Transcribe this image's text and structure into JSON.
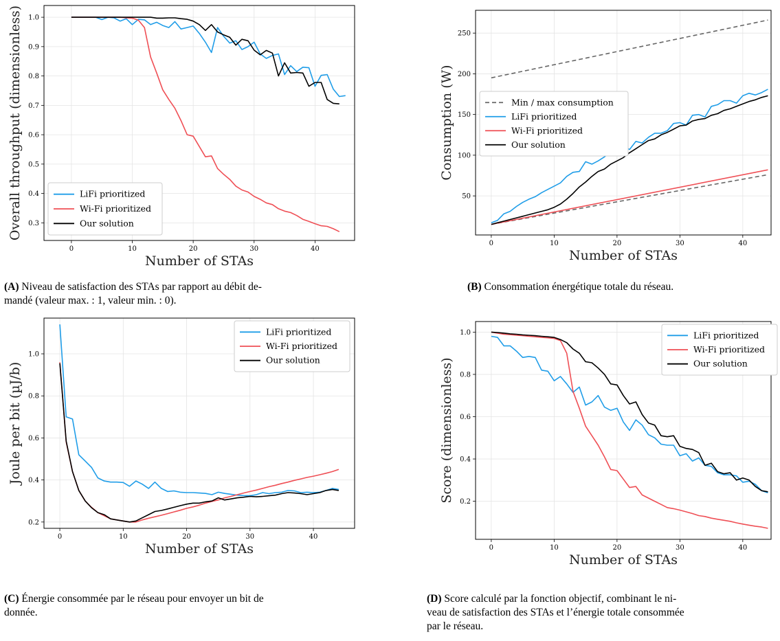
{
  "colors": {
    "lifi": "#1f9de8",
    "wifi": "#ef4f55",
    "ours": "#000000",
    "minmax": "#666666"
  },
  "captions": {
    "a": {
      "tag": "(A)",
      "text": " Niveau de satisfaction des STAs par rapport au débit de-\nmandé (valeur max. : 1, valeur min. : 0)."
    },
    "b": {
      "tag": "(B)",
      "text": " Consommation énergétique totale du réseau."
    },
    "c": {
      "tag": "(C)",
      "text": " Énergie consommée par le réseau pour envoyer un bit de\ndonnée."
    },
    "d": {
      "tag": "(D)",
      "text": " Score calculé par la fonction objectif, combinant le ni-\nveau de satisfaction des STAs et l’énergie totale consommée\npar le réseau."
    }
  },
  "chart_data": [
    {
      "id": "a",
      "type": "line",
      "xlabel": "Number of STAs",
      "ylabel": "Overall throughput (dimensionless)",
      "xlim": [
        -4.5,
        46.5
      ],
      "ylim": [
        0.24,
        1.04
      ],
      "xticks": [
        0,
        10,
        20,
        30,
        40
      ],
      "yticks": [
        0.3,
        0.4,
        0.5,
        0.6,
        0.7,
        0.8,
        0.9,
        1.0
      ],
      "ytick_labels": [
        "0.3",
        "0.4",
        "0.5",
        "0.6",
        "0.7",
        "0.8",
        "0.9",
        "1.0"
      ],
      "grid": true,
      "legend_position": "lower-left",
      "series": [
        {
          "name": "LiFi prioritized",
          "color_key": "lifi",
          "values": [
            1.0,
            1.0,
            1.0,
            1.0,
            1.0,
            0.992,
            1.0,
            0.998,
            0.987,
            0.995,
            0.975,
            0.993,
            0.991,
            0.975,
            0.983,
            0.972,
            0.965,
            0.985,
            0.96,
            0.965,
            0.97,
            0.945,
            0.915,
            0.88,
            0.965,
            0.935,
            0.912,
            0.92,
            0.89,
            0.9,
            0.915,
            0.875,
            0.86,
            0.87,
            0.875,
            0.805,
            0.835,
            0.815,
            0.83,
            0.828,
            0.765,
            0.802,
            0.805,
            0.755,
            0.73,
            0.733
          ]
        },
        {
          "name": "Wi-Fi prioritized",
          "color_key": "wifi",
          "values": [
            1.0,
            1.0,
            1.0,
            1.0,
            1.0,
            1.0,
            1.0,
            1.0,
            1.0,
            0.998,
            0.997,
            0.99,
            0.965,
            0.865,
            0.81,
            0.753,
            0.72,
            0.69,
            0.648,
            0.6,
            0.595,
            0.56,
            0.525,
            0.528,
            0.485,
            0.465,
            0.448,
            0.425,
            0.412,
            0.405,
            0.39,
            0.38,
            0.368,
            0.362,
            0.348,
            0.34,
            0.335,
            0.325,
            0.312,
            0.305,
            0.297,
            0.29,
            0.288,
            0.28,
            0.27
          ]
        },
        {
          "name": "Our solution",
          "color_key": "ours",
          "values": [
            1.0,
            1.0,
            1.0,
            1.0,
            1.0,
            1.0,
            1.0,
            1.0,
            1.0,
            1.0,
            1.0,
            1.0,
            1.0,
            1.0,
            0.997,
            0.997,
            0.998,
            0.998,
            0.995,
            0.993,
            0.987,
            0.975,
            0.955,
            0.975,
            0.95,
            0.94,
            0.932,
            0.905,
            0.925,
            0.92,
            0.888,
            0.872,
            0.887,
            0.878,
            0.8,
            0.845,
            0.81,
            0.812,
            0.81,
            0.765,
            0.778,
            0.778,
            0.72,
            0.707,
            0.705
          ]
        }
      ]
    },
    {
      "id": "b",
      "type": "line",
      "xlabel": "Number of STAs",
      "ylabel": "Consumption (W)",
      "xlim": [
        -2.5,
        44.5
      ],
      "ylim": [
        2,
        278
      ],
      "xticks": [
        0,
        10,
        20,
        30,
        40
      ],
      "yticks": [
        50,
        100,
        150,
        200,
        250
      ],
      "ytick_labels": [
        "50",
        "100",
        "150",
        "200",
        "250"
      ],
      "grid": true,
      "legend_position": "center-left",
      "series": [
        {
          "name": "Min / max consumption",
          "color_key": "minmax",
          "dashed": true,
          "x": [
            0,
            44
          ],
          "values": [
            195,
            266
          ],
          "x2": [
            0,
            44
          ],
          "values2": [
            15,
            76
          ]
        },
        {
          "name": "LiFi prioritized",
          "color_key": "lifi",
          "values": [
            17,
            20,
            28,
            31,
            37,
            42,
            46,
            49,
            54,
            58,
            62,
            66,
            74,
            79,
            80,
            92,
            89,
            93,
            98,
            104,
            104,
            111,
            107,
            117,
            115,
            122,
            127,
            127,
            130,
            139,
            140,
            137,
            149,
            150,
            147,
            160,
            162,
            167,
            167,
            164,
            173,
            176,
            174,
            177,
            181
          ]
        },
        {
          "name": "Wi-Fi prioritized",
          "color_key": "wifi",
          "x": [
            0,
            44
          ],
          "values": [
            15,
            82
          ]
        },
        {
          "name": "Our solution",
          "color_key": "ours",
          "values": [
            15,
            17,
            19,
            21,
            23,
            25,
            27,
            29,
            31,
            33,
            36,
            40,
            46,
            53,
            61,
            67,
            74,
            80,
            83,
            89,
            93,
            97,
            103,
            108,
            113,
            118,
            120,
            125,
            128,
            132,
            136,
            137,
            142,
            144,
            145,
            149,
            151,
            155,
            157,
            160,
            163,
            166,
            168,
            171,
            173
          ]
        }
      ]
    },
    {
      "id": "c",
      "type": "line",
      "xlabel": "Number of STAs",
      "ylabel": "Joule per bit (µJ/b)",
      "xlim": [
        -2.5,
        46.5
      ],
      "ylim": [
        0.17,
        1.17
      ],
      "xticks": [
        0,
        10,
        20,
        30,
        40
      ],
      "yticks": [
        0.2,
        0.4,
        0.6,
        0.8,
        1.0
      ],
      "ytick_labels": [
        "0.2",
        "0.4",
        "0.6",
        "0.8",
        "1.0"
      ],
      "grid": true,
      "legend_position": "top-right",
      "series": [
        {
          "name": "LiFi prioritized",
          "color_key": "lifi",
          "values": [
            1.14,
            0.7,
            0.69,
            0.52,
            0.49,
            0.46,
            0.41,
            0.395,
            0.39,
            0.39,
            0.388,
            0.37,
            0.395,
            0.38,
            0.36,
            0.39,
            0.36,
            0.345,
            0.348,
            0.342,
            0.34,
            0.34,
            0.338,
            0.336,
            0.33,
            0.342,
            0.336,
            0.332,
            0.328,
            0.326,
            0.325,
            0.33,
            0.34,
            0.335,
            0.34,
            0.342,
            0.35,
            0.348,
            0.34,
            0.342,
            0.34,
            0.342,
            0.35,
            0.36,
            0.355
          ]
        },
        {
          "name": "Wi-Fi prioritized",
          "color_key": "wifi",
          "values": [
            0.96,
            0.58,
            0.44,
            0.35,
            0.3,
            0.27,
            0.245,
            0.23,
            0.215,
            0.21,
            0.205,
            0.2,
            0.2,
            0.21,
            0.218,
            0.225,
            0.232,
            0.24,
            0.248,
            0.256,
            0.265,
            0.272,
            0.28,
            0.29,
            0.298,
            0.305,
            0.315,
            0.322,
            0.33,
            0.338,
            0.345,
            0.352,
            0.36,
            0.368,
            0.375,
            0.383,
            0.39,
            0.398,
            0.405,
            0.412,
            0.418,
            0.425,
            0.432,
            0.44,
            0.45
          ]
        },
        {
          "name": "Our solution",
          "color_key": "ours",
          "values": [
            0.955,
            0.585,
            0.44,
            0.35,
            0.3,
            0.268,
            0.245,
            0.235,
            0.215,
            0.21,
            0.205,
            0.2,
            0.205,
            0.22,
            0.235,
            0.25,
            0.255,
            0.262,
            0.27,
            0.278,
            0.285,
            0.29,
            0.29,
            0.296,
            0.3,
            0.315,
            0.305,
            0.31,
            0.315,
            0.318,
            0.322,
            0.32,
            0.322,
            0.325,
            0.328,
            0.335,
            0.34,
            0.338,
            0.335,
            0.33,
            0.335,
            0.34,
            0.35,
            0.355,
            0.35
          ]
        }
      ]
    },
    {
      "id": "d",
      "type": "line",
      "xlabel": "Number of STAs",
      "ylabel": "Score (dimensionless)",
      "xlim": [
        -2.5,
        44.5
      ],
      "ylim": [
        0.02,
        1.05
      ],
      "xticks": [
        0,
        10,
        20,
        30,
        40
      ],
      "yticks": [
        0.2,
        0.4,
        0.6,
        0.8,
        1.0
      ],
      "ytick_labels": [
        "0.2",
        "0.4",
        "0.6",
        "0.8",
        "1.0"
      ],
      "grid": true,
      "legend_position": "top-right",
      "series": [
        {
          "name": "LiFi prioritized",
          "color_key": "lifi",
          "values": [
            0.98,
            0.975,
            0.935,
            0.935,
            0.91,
            0.88,
            0.885,
            0.88,
            0.82,
            0.815,
            0.77,
            0.79,
            0.755,
            0.715,
            0.74,
            0.655,
            0.67,
            0.7,
            0.645,
            0.63,
            0.64,
            0.575,
            0.535,
            0.585,
            0.56,
            0.515,
            0.5,
            0.47,
            0.465,
            0.465,
            0.415,
            0.425,
            0.39,
            0.405,
            0.37,
            0.365,
            0.335,
            0.325,
            0.325,
            0.32,
            0.29,
            0.295,
            0.28,
            0.25,
            0.24
          ]
        },
        {
          "name": "Wi-Fi prioritized",
          "color_key": "wifi",
          "values": [
            1.0,
            0.995,
            0.99,
            0.988,
            0.985,
            0.983,
            0.98,
            0.978,
            0.975,
            0.973,
            0.97,
            0.96,
            0.9,
            0.72,
            0.64,
            0.555,
            0.51,
            0.465,
            0.41,
            0.35,
            0.345,
            0.305,
            0.265,
            0.27,
            0.23,
            0.215,
            0.2,
            0.185,
            0.17,
            0.165,
            0.158,
            0.15,
            0.142,
            0.132,
            0.128,
            0.12,
            0.115,
            0.11,
            0.105,
            0.098,
            0.092,
            0.087,
            0.082,
            0.078,
            0.072
          ]
        },
        {
          "name": "Our solution",
          "color_key": "ours",
          "values": [
            1.0,
            0.998,
            0.995,
            0.992,
            0.99,
            0.987,
            0.985,
            0.983,
            0.98,
            0.978,
            0.975,
            0.965,
            0.95,
            0.92,
            0.9,
            0.86,
            0.855,
            0.83,
            0.8,
            0.755,
            0.75,
            0.7,
            0.66,
            0.67,
            0.61,
            0.57,
            0.56,
            0.51,
            0.505,
            0.51,
            0.46,
            0.45,
            0.445,
            0.43,
            0.37,
            0.38,
            0.34,
            0.33,
            0.335,
            0.3,
            0.31,
            0.3,
            0.27,
            0.25,
            0.245
          ]
        }
      ]
    }
  ]
}
